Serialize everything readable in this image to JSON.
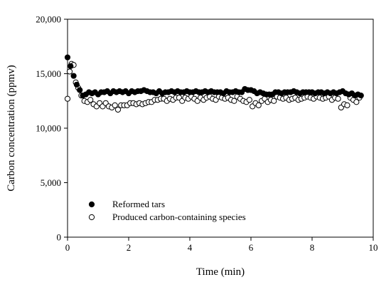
{
  "chart_data": {
    "type": "scatter",
    "xlabel": "Time (min)",
    "ylabel": "Carbon concentration (ppmv)",
    "xlim": [
      0,
      10
    ],
    "ylim": [
      0,
      20000
    ],
    "xticks": [
      0,
      2,
      4,
      6,
      8,
      10
    ],
    "yticks": [
      0,
      5000,
      10000,
      15000,
      20000
    ],
    "xtick_labels": [
      "0",
      "2",
      "4",
      "6",
      "8",
      "10"
    ],
    "ytick_labels": [
      "0",
      "5,000",
      "10,000",
      "15,000",
      "20,000"
    ],
    "grid": false,
    "legend_position": "bottom-left",
    "series": [
      {
        "name": "Reformed tars",
        "marker": "filled-circle",
        "color": "#000000",
        "x": [
          0,
          0.1,
          0.2,
          0.3,
          0.4,
          0.5,
          0.6,
          0.7,
          0.8,
          0.9,
          1.0,
          1.1,
          1.2,
          1.3,
          1.4,
          1.5,
          1.6,
          1.7,
          1.8,
          1.9,
          2.0,
          2.1,
          2.2,
          2.3,
          2.4,
          2.5,
          2.6,
          2.7,
          2.8,
          2.9,
          3.0,
          3.1,
          3.2,
          3.3,
          3.4,
          3.5,
          3.6,
          3.7,
          3.8,
          3.9,
          4.0,
          4.1,
          4.2,
          4.3,
          4.4,
          4.5,
          4.6,
          4.7,
          4.8,
          4.9,
          5.0,
          5.1,
          5.2,
          5.3,
          5.4,
          5.5,
          5.6,
          5.7,
          5.8,
          5.9,
          6.0,
          6.1,
          6.2,
          6.3,
          6.4,
          6.5,
          6.6,
          6.7,
          6.8,
          6.9,
          7.0,
          7.1,
          7.2,
          7.3,
          7.4,
          7.5,
          7.6,
          7.7,
          7.8,
          7.9,
          8.0,
          8.1,
          8.2,
          8.3,
          8.4,
          8.5,
          8.6,
          8.7,
          8.8,
          8.9,
          9.0,
          9.1,
          9.2,
          9.3,
          9.4,
          9.5,
          9.6
        ],
        "y": [
          16500,
          15700,
          14800,
          14000,
          13500,
          13000,
          13100,
          13300,
          13200,
          13300,
          13100,
          13300,
          13300,
          13400,
          13200,
          13400,
          13300,
          13400,
          13300,
          13400,
          13200,
          13400,
          13300,
          13400,
          13400,
          13500,
          13400,
          13300,
          13300,
          13200,
          13400,
          13200,
          13300,
          13300,
          13400,
          13300,
          13400,
          13300,
          13300,
          13400,
          13300,
          13300,
          13400,
          13300,
          13300,
          13400,
          13300,
          13400,
          13300,
          13300,
          13300,
          13200,
          13400,
          13300,
          13300,
          13400,
          13300,
          13300,
          13600,
          13500,
          13500,
          13400,
          13200,
          13300,
          13200,
          13100,
          13100,
          13100,
          13300,
          13300,
          13200,
          13300,
          13300,
          13300,
          13400,
          13300,
          13200,
          13300,
          13300,
          13300,
          13300,
          13200,
          13300,
          13300,
          13200,
          13300,
          13200,
          13300,
          13200,
          13300,
          13400,
          13200,
          13100,
          13200,
          13000,
          13100,
          13000
        ]
      },
      {
        "name": "Produced carbon-containing species",
        "marker": "open-circle",
        "color": "#000000",
        "x": [
          0,
          0.07,
          0.13,
          0.2,
          0.27,
          0.35,
          0.45,
          0.55,
          0.65,
          0.75,
          0.85,
          0.95,
          1.05,
          1.15,
          1.25,
          1.35,
          1.45,
          1.55,
          1.65,
          1.75,
          1.85,
          1.95,
          2.05,
          2.15,
          2.25,
          2.35,
          2.45,
          2.55,
          2.65,
          2.75,
          2.85,
          2.95,
          3.05,
          3.15,
          3.25,
          3.35,
          3.45,
          3.55,
          3.65,
          3.75,
          3.85,
          3.95,
          4.05,
          4.15,
          4.25,
          4.35,
          4.45,
          4.55,
          4.65,
          4.75,
          4.85,
          4.95,
          5.05,
          5.15,
          5.25,
          5.35,
          5.45,
          5.55,
          5.65,
          5.75,
          5.85,
          5.95,
          6.05,
          6.15,
          6.25,
          6.35,
          6.45,
          6.55,
          6.65,
          6.75,
          6.85,
          6.95,
          7.05,
          7.15,
          7.25,
          7.35,
          7.45,
          7.55,
          7.65,
          7.75,
          7.85,
          7.95,
          8.05,
          8.15,
          8.25,
          8.35,
          8.45,
          8.55,
          8.65,
          8.75,
          8.85,
          8.95,
          9.05,
          9.15,
          9.25,
          9.35,
          9.45,
          9.55
        ],
        "y": [
          12700,
          15200,
          15900,
          15800,
          14200,
          13700,
          13000,
          12500,
          12400,
          12600,
          12200,
          12000,
          12300,
          12000,
          12300,
          12000,
          11900,
          12100,
          11700,
          12100,
          12100,
          12100,
          12300,
          12300,
          12200,
          12300,
          12200,
          12300,
          12400,
          12400,
          12600,
          12600,
          12700,
          12700,
          12500,
          12700,
          12600,
          12800,
          12800,
          12500,
          12800,
          12700,
          12900,
          12700,
          12500,
          12800,
          12600,
          12800,
          12900,
          12700,
          12600,
          12900,
          12800,
          12700,
          12800,
          12600,
          12500,
          12900,
          12700,
          12500,
          12400,
          12600,
          12000,
          12300,
          12100,
          12500,
          12700,
          12400,
          12600,
          12500,
          12900,
          12800,
          12700,
          12800,
          12600,
          12700,
          12800,
          12600,
          12700,
          12800,
          12900,
          12800,
          12700,
          12900,
          12800,
          12700,
          12800,
          12900,
          12600,
          12800,
          12700,
          11900,
          12200,
          12100,
          12800,
          12600,
          12400,
          12800
        ]
      }
    ]
  }
}
